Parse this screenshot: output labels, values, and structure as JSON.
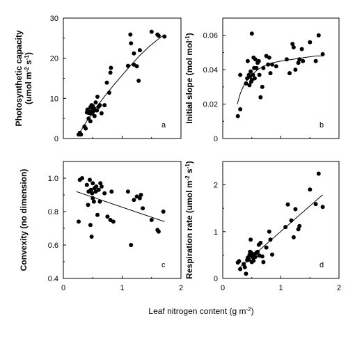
{
  "figure": {
    "xlabel": {
      "prefix": "Leaf nitrogen content (g m",
      "sup": "-2",
      "suffix": ")"
    }
  },
  "chart_data": [
    {
      "id": "a",
      "type": "scatter",
      "panel_letter": "a",
      "ylabel": {
        "parts": [
          {
            "t": "Photosynthetic capacity"
          }
        ],
        "line2": [
          {
            "t": "(umol m"
          },
          {
            "t": "-2",
            "sup": true
          },
          {
            "t": " s"
          },
          {
            "t": "-1",
            "sup": true
          },
          {
            "t": ")"
          }
        ]
      },
      "xlim": [
        0,
        2
      ],
      "ylim": [
        0,
        30
      ],
      "xticks": [
        0,
        1,
        2
      ],
      "yticks": [
        0,
        10,
        20,
        30
      ],
      "xticks_labeled": false,
      "yticks_minor": [
        5,
        15,
        25
      ],
      "points": [
        [
          0.26,
          1.0
        ],
        [
          0.28,
          1.4
        ],
        [
          0.3,
          1.0
        ],
        [
          0.36,
          3.0
        ],
        [
          0.38,
          2.5
        ],
        [
          0.4,
          6.5
        ],
        [
          0.41,
          7.2
        ],
        [
          0.43,
          5.0
        ],
        [
          0.43,
          6.4
        ],
        [
          0.45,
          6.7
        ],
        [
          0.46,
          4.3
        ],
        [
          0.46,
          7.8
        ],
        [
          0.47,
          6.2
        ],
        [
          0.48,
          8.3
        ],
        [
          0.49,
          6.3
        ],
        [
          0.5,
          7.2
        ],
        [
          0.5,
          8.1
        ],
        [
          0.51,
          6.8
        ],
        [
          0.52,
          7.5
        ],
        [
          0.53,
          5.6
        ],
        [
          0.55,
          9.0
        ],
        [
          0.57,
          7.0
        ],
        [
          0.58,
          10.4
        ],
        [
          0.6,
          7.9
        ],
        [
          0.62,
          8.3
        ],
        [
          0.65,
          6.3
        ],
        [
          0.7,
          8.3
        ],
        [
          0.74,
          13.9
        ],
        [
          0.78,
          11.4
        ],
        [
          0.8,
          16.4
        ],
        [
          0.81,
          17.6
        ],
        [
          1.1,
          18.1
        ],
        [
          1.14,
          25.9
        ],
        [
          1.15,
          23.7
        ],
        [
          1.2,
          21.2
        ],
        [
          1.2,
          18.4
        ],
        [
          1.25,
          18.0
        ],
        [
          1.28,
          14.4
        ],
        [
          1.3,
          22.0
        ],
        [
          1.5,
          26.6
        ],
        [
          1.6,
          25.9
        ],
        [
          1.62,
          25.6
        ],
        [
          1.72,
          25.4
        ]
      ],
      "fit_line": [
        [
          0.25,
          0.8
        ],
        [
          0.4,
          4.4
        ],
        [
          0.55,
          7.6
        ],
        [
          0.7,
          10.5
        ],
        [
          0.85,
          13.2
        ],
        [
          1.0,
          15.8
        ],
        [
          1.15,
          18.3
        ],
        [
          1.3,
          20.7
        ],
        [
          1.45,
          22.8
        ],
        [
          1.6,
          24.6
        ],
        [
          1.72,
          25.9
        ]
      ]
    },
    {
      "id": "b",
      "type": "scatter",
      "panel_letter": "b",
      "ylabel": {
        "line1": [
          {
            "t": "Initial slope (mol mol"
          },
          {
            "t": "-1",
            "sup": true
          },
          {
            "t": ")"
          }
        ]
      },
      "xlim": [
        0,
        2
      ],
      "ylim": [
        0,
        0.07
      ],
      "xticks": [
        0,
        1,
        2
      ],
      "yticks": [
        0,
        0.02,
        0.04,
        0.06
      ],
      "ytick_labels": [
        "0",
        "0.02",
        "0.04",
        "0.06"
      ],
      "xticks_labeled": false,
      "yticks_minor": [
        0.01,
        0.03,
        0.05
      ],
      "points": [
        [
          0.26,
          0.013
        ],
        [
          0.3,
          0.017
        ],
        [
          0.3,
          0.037
        ],
        [
          0.4,
          0.032
        ],
        [
          0.42,
          0.035
        ],
        [
          0.43,
          0.045
        ],
        [
          0.45,
          0.037
        ],
        [
          0.46,
          0.031
        ],
        [
          0.47,
          0.036
        ],
        [
          0.48,
          0.039
        ],
        [
          0.49,
          0.033
        ],
        [
          0.5,
          0.061
        ],
        [
          0.5,
          0.034
        ],
        [
          0.52,
          0.037
        ],
        [
          0.53,
          0.047
        ],
        [
          0.54,
          0.041
        ],
        [
          0.55,
          0.035
        ],
        [
          0.56,
          0.046
        ],
        [
          0.58,
          0.041
        ],
        [
          0.6,
          0.044
        ],
        [
          0.62,
          0.045
        ],
        [
          0.63,
          0.037
        ],
        [
          0.65,
          0.024
        ],
        [
          0.68,
          0.03
        ],
        [
          0.7,
          0.041
        ],
        [
          0.75,
          0.048
        ],
        [
          0.78,
          0.043
        ],
        [
          0.8,
          0.047
        ],
        [
          0.82,
          0.038
        ],
        [
          0.85,
          0.043
        ],
        [
          0.92,
          0.042
        ],
        [
          1.1,
          0.046
        ],
        [
          1.15,
          0.038
        ],
        [
          1.2,
          0.055
        ],
        [
          1.22,
          0.053
        ],
        [
          1.25,
          0.04
        ],
        [
          1.3,
          0.044
        ],
        [
          1.32,
          0.046
        ],
        [
          1.36,
          0.052
        ],
        [
          1.38,
          0.045
        ],
        [
          1.5,
          0.056
        ],
        [
          1.6,
          0.045
        ],
        [
          1.65,
          0.06
        ],
        [
          1.72,
          0.049
        ]
      ],
      "fit_line": [
        [
          0.25,
          0.02
        ],
        [
          0.3,
          0.026
        ],
        [
          0.35,
          0.03
        ],
        [
          0.4,
          0.033
        ],
        [
          0.5,
          0.037
        ],
        [
          0.6,
          0.04
        ],
        [
          0.7,
          0.042
        ],
        [
          0.85,
          0.044
        ],
        [
          1.0,
          0.045
        ],
        [
          1.2,
          0.046
        ],
        [
          1.4,
          0.047
        ],
        [
          1.6,
          0.048
        ],
        [
          1.72,
          0.048
        ]
      ]
    },
    {
      "id": "c",
      "type": "scatter",
      "panel_letter": "c",
      "ylabel": {
        "line1": [
          {
            "t": "Convexity (no dimension)"
          }
        ]
      },
      "xlim": [
        0,
        2
      ],
      "ylim": [
        0.4,
        1.1
      ],
      "xticks": [
        0,
        1,
        2
      ],
      "yticks": [
        0.4,
        0.6,
        0.8,
        1.0
      ],
      "ytick_labels": [
        "0.4",
        "0.6",
        "0.8",
        "1.0"
      ],
      "xticks_labeled": true,
      "yticks_minor": [
        0.5,
        0.7,
        0.9
      ],
      "points": [
        [
          0.26,
          0.74
        ],
        [
          0.28,
          0.99
        ],
        [
          0.32,
          1.0
        ],
        [
          0.4,
          0.96
        ],
        [
          0.42,
          0.84
        ],
        [
          0.43,
          0.92
        ],
        [
          0.45,
          0.99
        ],
        [
          0.46,
          0.72
        ],
        [
          0.47,
          0.93
        ],
        [
          0.48,
          0.65
        ],
        [
          0.49,
          0.91
        ],
        [
          0.5,
          0.97
        ],
        [
          0.5,
          0.88
        ],
        [
          0.52,
          0.86
        ],
        [
          0.53,
          0.94
        ],
        [
          0.55,
          0.92
        ],
        [
          0.56,
          0.95
        ],
        [
          0.58,
          0.78
        ],
        [
          0.6,
          0.93
        ],
        [
          0.62,
          0.86
        ],
        [
          0.63,
          0.97
        ],
        [
          0.65,
          0.95
        ],
        [
          0.7,
          0.91
        ],
        [
          0.75,
          0.77
        ],
        [
          0.8,
          0.75
        ],
        [
          0.82,
          0.92
        ],
        [
          0.85,
          0.74
        ],
        [
          1.1,
          0.92
        ],
        [
          1.15,
          0.6
        ],
        [
          1.2,
          0.87
        ],
        [
          1.25,
          0.89
        ],
        [
          1.3,
          0.88
        ],
        [
          1.32,
          0.9
        ],
        [
          1.35,
          0.82
        ],
        [
          1.5,
          0.75
        ],
        [
          1.6,
          0.69
        ],
        [
          1.62,
          0.68
        ],
        [
          1.7,
          0.8
        ]
      ],
      "fit_line": [
        [
          0.22,
          0.92
        ],
        [
          1.72,
          0.74
        ]
      ]
    },
    {
      "id": "d",
      "type": "scatter",
      "panel_letter": "d",
      "ylabel": {
        "line1": [
          {
            "t": "Respiration rate (umol m"
          },
          {
            "t": "-2",
            "sup": true
          },
          {
            "t": " s"
          },
          {
            "t": "-1",
            "sup": true
          },
          {
            "t": ")"
          }
        ]
      },
      "xlim": [
        0,
        2
      ],
      "ylim": [
        0,
        2.5
      ],
      "xticks": [
        0,
        1,
        2
      ],
      "yticks": [
        0,
        1,
        2
      ],
      "ytick_labels": [
        "0",
        "1",
        "2"
      ],
      "xticks_labeled": true,
      "yticks_minor": [
        0.5,
        1.5
      ],
      "points": [
        [
          0.26,
          0.34
        ],
        [
          0.28,
          0.37
        ],
        [
          0.3,
          0.2
        ],
        [
          0.36,
          0.31
        ],
        [
          0.38,
          0.24
        ],
        [
          0.4,
          0.1
        ],
        [
          0.42,
          0.39
        ],
        [
          0.43,
          0.44
        ],
        [
          0.45,
          0.4
        ],
        [
          0.46,
          0.5
        ],
        [
          0.47,
          0.57
        ],
        [
          0.48,
          0.83
        ],
        [
          0.49,
          0.55
        ],
        [
          0.5,
          0.48
        ],
        [
          0.5,
          0.35
        ],
        [
          0.52,
          0.45
        ],
        [
          0.53,
          0.38
        ],
        [
          0.55,
          0.52
        ],
        [
          0.56,
          0.46
        ],
        [
          0.58,
          0.55
        ],
        [
          0.6,
          0.57
        ],
        [
          0.62,
          0.72
        ],
        [
          0.63,
          0.49
        ],
        [
          0.65,
          0.76
        ],
        [
          0.68,
          0.47
        ],
        [
          0.7,
          0.35
        ],
        [
          0.75,
          0.66
        ],
        [
          0.8,
          1.0
        ],
        [
          0.82,
          0.83
        ],
        [
          0.85,
          0.51
        ],
        [
          1.08,
          1.1
        ],
        [
          1.12,
          1.58
        ],
        [
          1.18,
          1.24
        ],
        [
          1.22,
          0.88
        ],
        [
          1.25,
          1.48
        ],
        [
          1.3,
          1.05
        ],
        [
          1.32,
          1.12
        ],
        [
          1.5,
          1.9
        ],
        [
          1.6,
          1.59
        ],
        [
          1.65,
          2.24
        ],
        [
          1.72,
          1.53
        ]
      ],
      "fit_line": [
        [
          0.26,
          0.2
        ],
        [
          1.72,
          1.79
        ]
      ]
    }
  ]
}
